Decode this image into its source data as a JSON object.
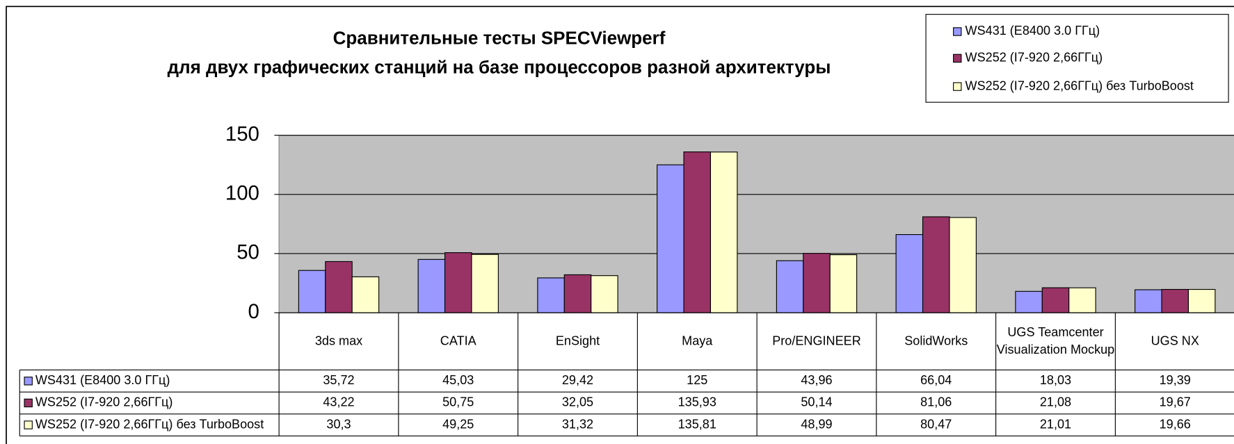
{
  "chart_data": {
    "type": "bar",
    "title": "Сравнительные тесты SPECViewperf",
    "subtitle": "для двух графических станций на базе процессоров разной архитектуры",
    "categories": [
      "3ds max",
      "CATIA",
      "EnSight",
      "Maya",
      "Pro/ENGINEER",
      "SolidWorks",
      "UGS Teamcenter Visualization Mockup",
      "UGS NX"
    ],
    "series": [
      {
        "name": "WS431 (E8400 3.0 ГГц)",
        "color": "#9999ff",
        "values": [
          35.72,
          45.03,
          29.42,
          125,
          43.96,
          66.04,
          18.03,
          19.39
        ],
        "value_labels": [
          "35,72",
          "45,03",
          "29,42",
          "125",
          "43,96",
          "66,04",
          "18,03",
          "19,39"
        ]
      },
      {
        "name": "WS252 (I7-920 2,66ГГц)",
        "color": "#993366",
        "values": [
          43.22,
          50.75,
          32.05,
          135.93,
          50.14,
          81.06,
          21.08,
          19.67
        ],
        "value_labels": [
          "43,22",
          "50,75",
          "32,05",
          "135,93",
          "50,14",
          "81,06",
          "21,08",
          "19,67"
        ]
      },
      {
        "name": "WS252 (I7-920 2,66ГГц) без TurboBoost",
        "color": "#ffffcc",
        "values": [
          30.3,
          49.25,
          31.32,
          135.81,
          48.99,
          80.47,
          21.01,
          19.66
        ],
        "value_labels": [
          "30,3",
          "49,25",
          "31,32",
          "135,81",
          "48,99",
          "80,47",
          "21,01",
          "19,66"
        ]
      }
    ],
    "ylim": [
      0,
      150
    ],
    "yticks": [
      0,
      50,
      100,
      150
    ],
    "grid": true,
    "legend": "top-right",
    "plot_background": "#c0c0c0"
  }
}
